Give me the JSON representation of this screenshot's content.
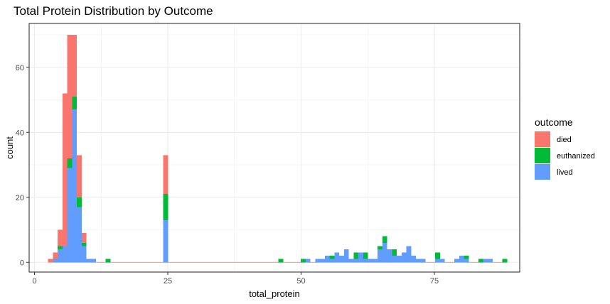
{
  "chart_data": {
    "type": "bar",
    "stacked": true,
    "title": "Total Protein Distribution by Outcome",
    "xlabel": "total_protein",
    "ylabel": "count",
    "xlim": [
      -1,
      91
    ],
    "ylim": [
      -3,
      73.5
    ],
    "x_ticks": [
      0,
      25,
      50,
      75
    ],
    "y_ticks": [
      0,
      20,
      40,
      60
    ],
    "bin_width": 0.9,
    "grid": true,
    "legend": {
      "title": "outcome",
      "position": "right"
    },
    "colors": {
      "died": "#F8766D",
      "euthanized": "#00BA38",
      "lived": "#619CFF"
    },
    "x": [
      3.0,
      3.9,
      4.8,
      5.7,
      6.6,
      7.5,
      8.4,
      9.3,
      10.2,
      11.1,
      12.0,
      13.8,
      24.6,
      46.2,
      50.4,
      51.3,
      52.2,
      53.1,
      54.0,
      54.9,
      55.8,
      56.7,
      57.6,
      58.5,
      59.4,
      60.3,
      61.2,
      62.1,
      63.0,
      63.9,
      64.8,
      65.7,
      66.6,
      67.5,
      68.4,
      69.3,
      70.2,
      71.1,
      72.0,
      72.9,
      74.7,
      75.6,
      76.5,
      79.2,
      80.1,
      81.0,
      83.7,
      84.6,
      85.5,
      88.2
    ],
    "series": [
      {
        "name": "lived",
        "values": [
          0,
          1,
          4,
          5,
          29,
          47,
          17,
          5,
          1,
          1,
          0,
          0,
          13,
          0,
          0,
          1,
          0,
          1,
          1,
          2,
          1,
          3,
          2,
          4,
          1,
          1,
          3,
          1,
          1,
          1,
          4,
          6,
          4,
          2,
          2,
          3,
          5,
          2,
          1,
          1,
          0,
          1,
          1,
          1,
          2,
          1,
          0,
          1,
          1,
          0
        ]
      },
      {
        "name": "euthanized",
        "values": [
          0,
          0,
          1,
          0,
          3,
          4,
          3,
          1,
          0,
          0,
          0,
          1,
          8,
          1,
          1,
          0,
          0,
          0,
          0,
          0,
          1,
          0,
          0,
          0,
          0,
          2,
          0,
          2,
          0,
          0,
          1,
          2,
          0,
          2,
          0,
          0,
          0,
          0,
          0,
          0,
          0,
          2,
          0,
          0,
          0,
          1,
          1,
          0,
          0,
          1
        ]
      },
      {
        "name": "died",
        "values": [
          1,
          2,
          5,
          47,
          38,
          19,
          13,
          3,
          0,
          0,
          0,
          0,
          12,
          0,
          0,
          0,
          0,
          0,
          0,
          0,
          0,
          0,
          0,
          0,
          0,
          0,
          0,
          0,
          0,
          0,
          0,
          0,
          0,
          0,
          0,
          0,
          0,
          0,
          0,
          0,
          0,
          0,
          0,
          0,
          0,
          0,
          0,
          0,
          0,
          0
        ]
      }
    ]
  }
}
